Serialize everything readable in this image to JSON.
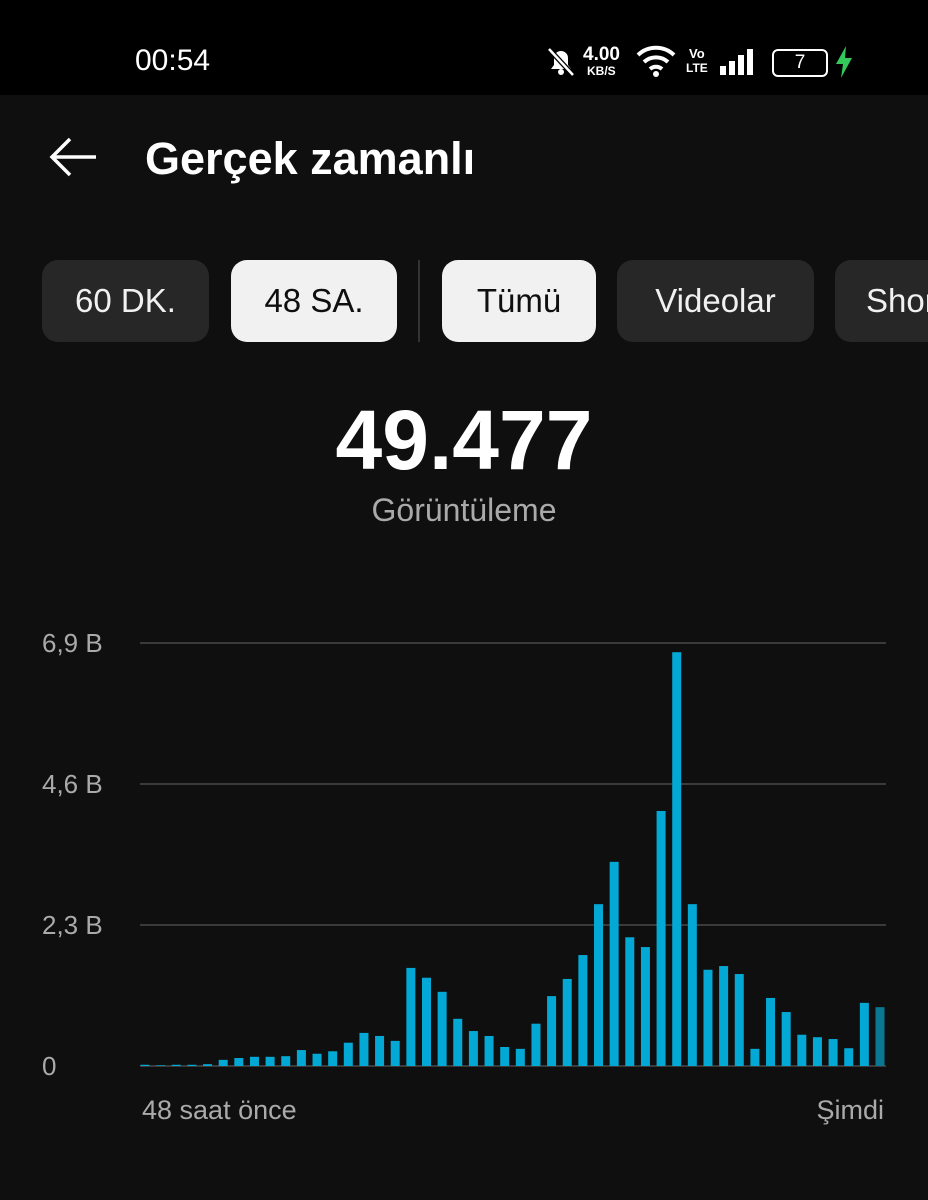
{
  "status_bar": {
    "time": "00:54",
    "speed": "4.00",
    "speed_unit": "KB/S",
    "network": "Vo",
    "network_type": "LTE",
    "battery": "7"
  },
  "header": {
    "title": "Gerçek zamanlı"
  },
  "chips": [
    "60 DK.",
    "48 SA.",
    "Tümü",
    "Videolar",
    "Shorts"
  ],
  "summary": {
    "value": "49.477",
    "label": "Görüntüleme"
  },
  "chart_data": {
    "type": "bar",
    "x_start_label": "48 saat önce",
    "x_end_label": "Şimdi",
    "values": [
      0.02,
      0.01,
      0.02,
      0.02,
      0.03,
      0.1,
      0.13,
      0.15,
      0.15,
      0.16,
      0.26,
      0.2,
      0.24,
      0.38,
      0.54,
      0.49,
      0.41,
      1.6,
      1.44,
      1.21,
      0.77,
      0.57,
      0.49,
      0.31,
      0.28,
      0.69,
      1.14,
      1.42,
      1.81,
      2.64,
      3.33,
      2.1,
      1.94,
      4.16,
      6.75,
      2.64,
      1.57,
      1.63,
      1.5,
      0.28,
      1.11,
      0.88,
      0.51,
      0.47,
      0.44,
      0.29,
      1.03,
      0.96
    ],
    "color": "#03a9d4",
    "last_bar_color": "#0b7893",
    "ylim": [
      0,
      6.9
    ],
    "yticks": [
      0,
      {
        "value": 2.3,
        "label": "2,3 B"
      },
      {
        "value": 4.6,
        "label": "4,6 B"
      },
      {
        "value": 6.9,
        "label": "6,9 B"
      }
    ],
    "grid": true
  }
}
